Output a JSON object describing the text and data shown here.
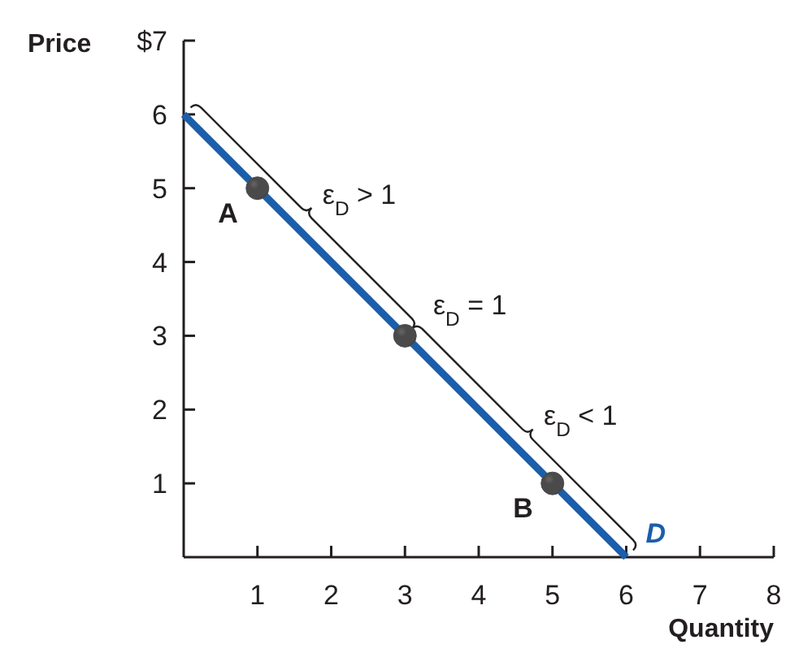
{
  "chart_data": {
    "type": "line",
    "xlabel": "Quantity",
    "ylabel": "Price",
    "xlim": [
      0,
      8
    ],
    "ylim": [
      0,
      7
    ],
    "xticks": [
      1,
      2,
      3,
      4,
      5,
      6,
      7,
      8
    ],
    "yticks": [
      1,
      2,
      3,
      4,
      5,
      6,
      {
        "value": 7,
        "label": "$7"
      }
    ],
    "series": [
      {
        "name": "D",
        "color": "#1b5ea9",
        "x": [
          0,
          6
        ],
        "values": [
          6,
          0
        ],
        "marker": "none"
      },
      {
        "type": "scatter",
        "color": "#4a4a4a",
        "x": [
          1,
          3,
          5
        ],
        "values": [
          5,
          3,
          1
        ],
        "value_labels": [
          "A",
          null,
          "B"
        ],
        "marker": "circle"
      }
    ],
    "annotations": [
      {
        "text": "ε$_{D}$ > 1",
        "x": 1.5,
        "y": 4.5
      },
      {
        "text": "ε$_{D}$ = 1",
        "x": 3,
        "y": 3
      },
      {
        "text": "ε$_{D}$ < 1",
        "x": 4.5,
        "y": 1.5
      }
    ]
  }
}
